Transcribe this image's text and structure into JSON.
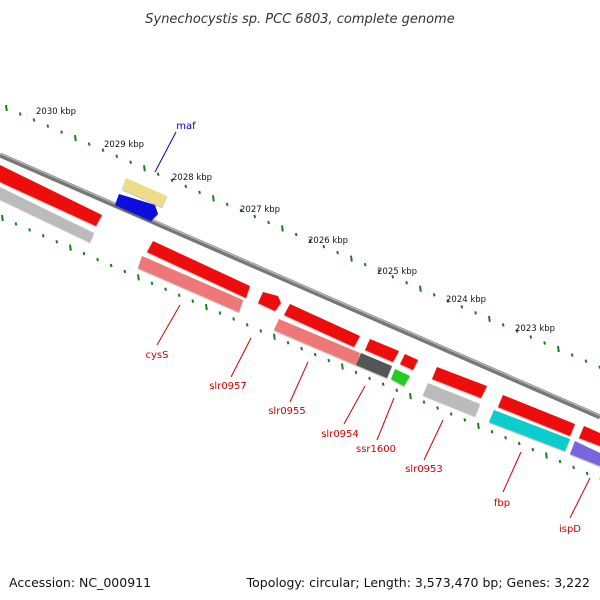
{
  "title": "Synechocystis sp. PCC 6803, complete genome",
  "footer": {
    "accession": "Accession: NC_000911",
    "summary": "Topology: circular; Length: 3,573,470 bp; Genes: 3,222"
  },
  "kbp_labels": [
    "2030 kbp",
    "2029 kbp",
    "2028 kbp",
    "2027 kbp",
    "2026 kbp",
    "2025 kbp",
    "2024 kbp",
    "2023 kbp"
  ],
  "colors": {
    "backbone": "#888888",
    "tick": "#1f7a1f",
    "gene_label_red": "#cc0000",
    "gene_label_blue": "#0000cc"
  },
  "genes": [
    {
      "name": "cysS",
      "label_color": "#cc0000"
    },
    {
      "name": "slr0957",
      "label_color": "#cc0000"
    },
    {
      "name": "slr0955",
      "label_color": "#cc0000"
    },
    {
      "name": "slr0954",
      "label_color": "#cc0000"
    },
    {
      "name": "ssr1600",
      "label_color": "#cc0000"
    },
    {
      "name": "slr0953",
      "label_color": "#cc0000"
    },
    {
      "name": "fbp",
      "label_color": "#cc0000"
    },
    {
      "name": "ispD",
      "label_color": "#cc0000"
    },
    {
      "name": "maf",
      "label_color": "#0000cc"
    }
  ],
  "features": [
    {
      "id": "f-red-left",
      "color": "#ee1111"
    },
    {
      "id": "f-gray-left",
      "color": "#bbbbbb"
    },
    {
      "id": "f-yellow-maf",
      "color": "#eedd88"
    },
    {
      "id": "f-blue-maf",
      "color": "#1111dd"
    },
    {
      "id": "f-red-cysS",
      "color": "#ee1111"
    },
    {
      "id": "f-pink-cysS",
      "color": "#ee7777"
    },
    {
      "id": "f-red-slr0957",
      "color": "#ee1111"
    },
    {
      "id": "f-red-slr0955",
      "color": "#ee1111"
    },
    {
      "id": "f-pink-slr0955",
      "color": "#ee7777"
    },
    {
      "id": "f-red-slr0954",
      "color": "#ee1111"
    },
    {
      "id": "f-dark-slr0954",
      "color": "#555555"
    },
    {
      "id": "f-red-small",
      "color": "#ee1111"
    },
    {
      "id": "f-green-ssr1600",
      "color": "#22cc22"
    },
    {
      "id": "f-red-slr0953",
      "color": "#ee1111"
    },
    {
      "id": "f-gray-slr0953",
      "color": "#bbbbbb"
    },
    {
      "id": "f-red-fbp",
      "color": "#ee1111"
    },
    {
      "id": "f-cyan-fbp",
      "color": "#11cccc"
    },
    {
      "id": "f-red-ispD",
      "color": "#ee1111"
    },
    {
      "id": "f-purple-ispD",
      "color": "#7766dd"
    }
  ]
}
